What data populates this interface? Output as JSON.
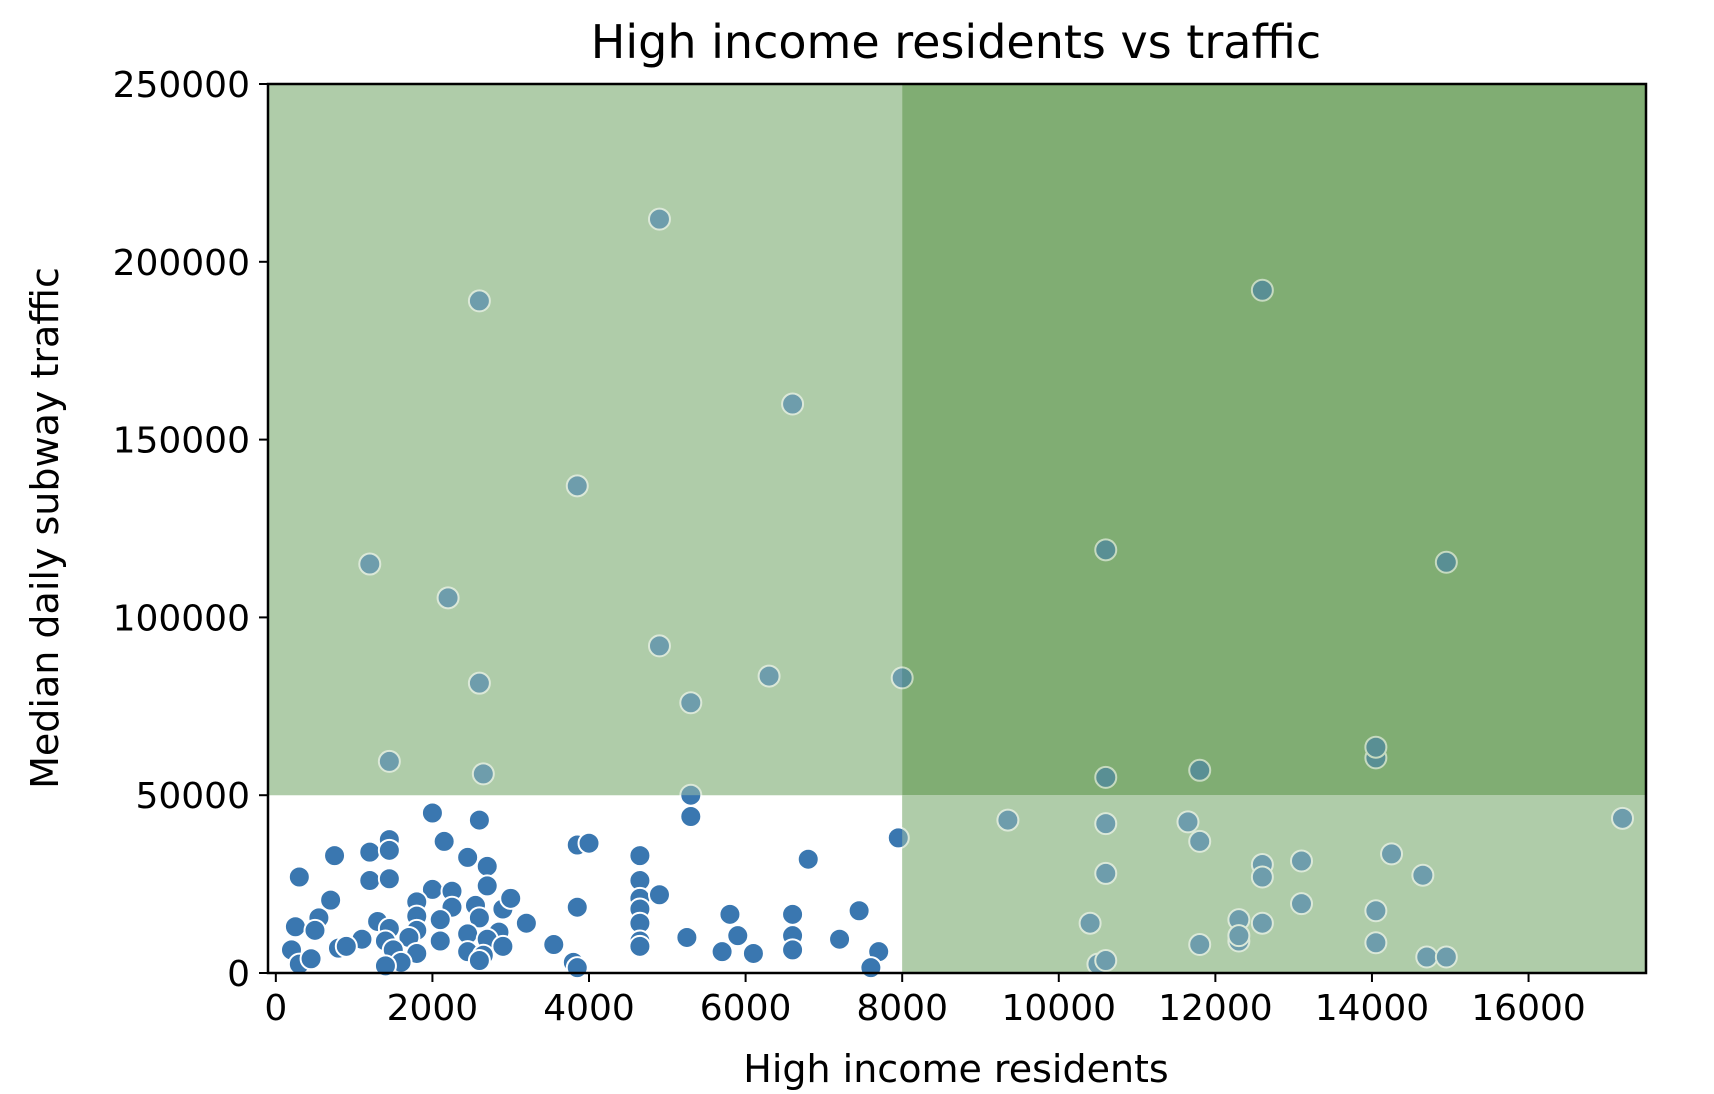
{
  "chart_data": {
    "type": "scatter",
    "title": "High income residents vs traffic",
    "xlabel": "High income residents",
    "ylabel": "Median daily subway traffic",
    "xlim": [
      -100,
      17500
    ],
    "ylim": [
      0,
      250000
    ],
    "xticks": [
      0,
      2000,
      4000,
      6000,
      8000,
      10000,
      12000,
      14000,
      16000
    ],
    "yticks": [
      0,
      50000,
      100000,
      150000,
      200000,
      250000
    ],
    "grid": false,
    "point_color": "#3a77b0",
    "regions": [
      {
        "x": [
          -100,
          8000
        ],
        "y": [
          50000,
          250000
        ],
        "color": "#b0cca9"
      },
      {
        "x": [
          8000,
          17500
        ],
        "y": [
          50000,
          250000
        ],
        "color": "#80ad73"
      },
      {
        "x": [
          8000,
          17500
        ],
        "y": [
          0,
          50000
        ],
        "color": "#b0cca9"
      }
    ],
    "points": [
      [
        4900,
        212000
      ],
      [
        2600,
        189000
      ],
      [
        12600,
        192000
      ],
      [
        6600,
        160000
      ],
      [
        3850,
        137000
      ],
      [
        1200,
        115000
      ],
      [
        10600,
        119000
      ],
      [
        14950,
        115500
      ],
      [
        2200,
        105500
      ],
      [
        4900,
        92000
      ],
      [
        2600,
        81500
      ],
      [
        6300,
        83500
      ],
      [
        8000,
        83000
      ],
      [
        5300,
        76000
      ],
      [
        1450,
        59500
      ],
      [
        2650,
        56000
      ],
      [
        10600,
        55000
      ],
      [
        11800,
        57000
      ],
      [
        14050,
        60500
      ],
      [
        14050,
        63500
      ],
      [
        5300,
        50000
      ],
      [
        5300,
        44000
      ],
      [
        2000,
        45000
      ],
      [
        2600,
        43000
      ],
      [
        9350,
        43000
      ],
      [
        10600,
        42000
      ],
      [
        11650,
        42500
      ],
      [
        17200,
        43500
      ],
      [
        7950,
        38000
      ],
      [
        11800,
        37000
      ],
      [
        1450,
        37500
      ],
      [
        2150,
        37000
      ],
      [
        3850,
        36000
      ],
      [
        4000,
        36500
      ],
      [
        1200,
        34000
      ],
      [
        1450,
        34500
      ],
      [
        750,
        33000
      ],
      [
        2450,
        32500
      ],
      [
        4650,
        33000
      ],
      [
        6800,
        32000
      ],
      [
        12600,
        30500
      ],
      [
        13100,
        31500
      ],
      [
        14250,
        33500
      ],
      [
        300,
        27000
      ],
      [
        1200,
        26000
      ],
      [
        1450,
        26500
      ],
      [
        2700,
        30000
      ],
      [
        2700,
        24500
      ],
      [
        4650,
        26000
      ],
      [
        10600,
        28000
      ],
      [
        12600,
        27000
      ],
      [
        14650,
        27500
      ],
      [
        2000,
        23500
      ],
      [
        2250,
        23000
      ],
      [
        4650,
        21000
      ],
      [
        4900,
        22000
      ],
      [
        700,
        20500
      ],
      [
        1800,
        20000
      ],
      [
        2250,
        18500
      ],
      [
        2550,
        19000
      ],
      [
        2900,
        18000
      ],
      [
        3000,
        21000
      ],
      [
        3850,
        18500
      ],
      [
        4650,
        18000
      ],
      [
        7450,
        17500
      ],
      [
        13100,
        19500
      ],
      [
        14050,
        17500
      ],
      [
        550,
        15500
      ],
      [
        1300,
        14500
      ],
      [
        1800,
        16000
      ],
      [
        2100,
        15000
      ],
      [
        2600,
        15500
      ],
      [
        3200,
        14000
      ],
      [
        4650,
        14000
      ],
      [
        5800,
        16500
      ],
      [
        6600,
        16500
      ],
      [
        12300,
        15000
      ],
      [
        12600,
        14000
      ],
      [
        10400,
        14000
      ],
      [
        250,
        13000
      ],
      [
        500,
        12000
      ],
      [
        1450,
        12500
      ],
      [
        1800,
        12000
      ],
      [
        2450,
        11000
      ],
      [
        2850,
        11500
      ],
      [
        5250,
        10000
      ],
      [
        5900,
        10500
      ],
      [
        6600,
        10500
      ],
      [
        1100,
        9500
      ],
      [
        1400,
        9000
      ],
      [
        1700,
        10000
      ],
      [
        2100,
        9000
      ],
      [
        2700,
        9500
      ],
      [
        3550,
        8000
      ],
      [
        4650,
        9000
      ],
      [
        7200,
        9500
      ],
      [
        12300,
        9000
      ],
      [
        12300,
        10500
      ],
      [
        14050,
        8500
      ],
      [
        11800,
        8000
      ],
      [
        200,
        6500
      ],
      [
        800,
        7000
      ],
      [
        900,
        7500
      ],
      [
        1500,
        6500
      ],
      [
        1800,
        5500
      ],
      [
        2450,
        6000
      ],
      [
        2650,
        5000
      ],
      [
        2900,
        7500
      ],
      [
        4650,
        7500
      ],
      [
        5700,
        6000
      ],
      [
        6100,
        5500
      ],
      [
        6600,
        6500
      ],
      [
        7700,
        6000
      ],
      [
        1600,
        3000
      ],
      [
        2600,
        3500
      ],
      [
        3800,
        3000
      ],
      [
        300,
        2500
      ],
      [
        450,
        4000
      ],
      [
        1400,
        2000
      ],
      [
        3850,
        1500
      ],
      [
        7600,
        1500
      ],
      [
        10500,
        2500
      ],
      [
        10600,
        3500
      ],
      [
        14700,
        4500
      ],
      [
        14950,
        4500
      ]
    ]
  }
}
